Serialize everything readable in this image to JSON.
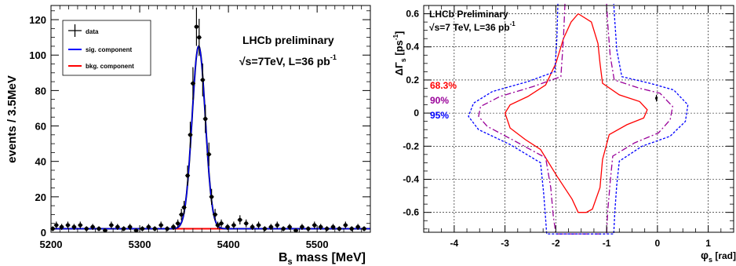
{
  "chart_data": [
    {
      "type": "scatter",
      "xlabel_main": "B",
      "xlabel_sub": "s",
      "xlabel_rest": " mass [MeV]",
      "ylabel": "events / 3.5MeV",
      "xlim": [
        5200,
        5560
      ],
      "ylim": [
        0,
        128
      ],
      "xticks": [
        5200,
        5300,
        5400,
        5500
      ],
      "yticks": [
        0,
        20,
        40,
        60,
        80,
        100,
        120
      ],
      "annotation_line1": "LHCb preliminary",
      "annotation_line2": "√s=7TeV, L=36 pb",
      "annotation_sup": "-1",
      "legend": {
        "placement": "top-left",
        "entries": [
          {
            "label": "data",
            "color": "#000000"
          },
          {
            "label": "sig. component",
            "color": "#0000ff"
          },
          {
            "label": "bkg. component",
            "color": "#ff0000"
          }
        ]
      },
      "signal": {
        "mean": 5366.5,
        "sigma": 7.5,
        "amplitude": 103
      },
      "background_level": 2.0,
      "data_points": [
        {
          "x": 5202,
          "y": 2,
          "err": 1.4
        },
        {
          "x": 5206,
          "y": 4,
          "err": 2
        },
        {
          "x": 5212,
          "y": 3,
          "err": 1.7
        },
        {
          "x": 5219,
          "y": 4,
          "err": 2
        },
        {
          "x": 5226,
          "y": 3,
          "err": 1.7
        },
        {
          "x": 5233,
          "y": 4,
          "err": 2
        },
        {
          "x": 5240,
          "y": 2,
          "err": 1.4
        },
        {
          "x": 5247,
          "y": 3,
          "err": 1.7
        },
        {
          "x": 5254,
          "y": 2,
          "err": 1.4
        },
        {
          "x": 5261,
          "y": 1,
          "err": 1
        },
        {
          "x": 5268,
          "y": 4,
          "err": 2
        },
        {
          "x": 5275,
          "y": 3,
          "err": 1.7
        },
        {
          "x": 5282,
          "y": 2,
          "err": 1.4
        },
        {
          "x": 5289,
          "y": 3,
          "err": 1.7
        },
        {
          "x": 5296,
          "y": 1,
          "err": 1
        },
        {
          "x": 5303,
          "y": 2,
          "err": 1.4
        },
        {
          "x": 5310,
          "y": 3,
          "err": 1.7
        },
        {
          "x": 5317,
          "y": 2,
          "err": 1.4
        },
        {
          "x": 5324,
          "y": 4,
          "err": 2
        },
        {
          "x": 5331,
          "y": 2,
          "err": 1.4
        },
        {
          "x": 5338,
          "y": 3,
          "err": 1.7
        },
        {
          "x": 5343,
          "y": 5,
          "err": 2.2
        },
        {
          "x": 5347,
          "y": 10,
          "err": 3.2
        },
        {
          "x": 5350,
          "y": 14,
          "err": 3.7
        },
        {
          "x": 5354,
          "y": 32,
          "err": 5.7
        },
        {
          "x": 5357,
          "y": 55,
          "err": 7.4
        },
        {
          "x": 5360,
          "y": 84,
          "err": 9.2
        },
        {
          "x": 5364,
          "y": 116,
          "err": 10.8
        },
        {
          "x": 5367,
          "y": 110,
          "err": 10.5
        },
        {
          "x": 5371,
          "y": 86,
          "err": 9.3
        },
        {
          "x": 5374,
          "y": 64,
          "err": 8
        },
        {
          "x": 5378,
          "y": 44,
          "err": 6.6
        },
        {
          "x": 5381,
          "y": 20,
          "err": 4.5
        },
        {
          "x": 5385,
          "y": 10,
          "err": 3.2
        },
        {
          "x": 5388,
          "y": 4,
          "err": 2
        },
        {
          "x": 5392,
          "y": 5,
          "err": 2.2
        },
        {
          "x": 5399,
          "y": 3,
          "err": 1.7
        },
        {
          "x": 5406,
          "y": 4,
          "err": 2
        },
        {
          "x": 5413,
          "y": 7,
          "err": 2.6
        },
        {
          "x": 5420,
          "y": 5,
          "err": 2.2
        },
        {
          "x": 5427,
          "y": 3,
          "err": 1.7
        },
        {
          "x": 5434,
          "y": 4,
          "err": 2
        },
        {
          "x": 5441,
          "y": 2,
          "err": 1.4
        },
        {
          "x": 5448,
          "y": 3,
          "err": 1.7
        },
        {
          "x": 5455,
          "y": 4,
          "err": 2
        },
        {
          "x": 5462,
          "y": 2,
          "err": 1.4
        },
        {
          "x": 5469,
          "y": 3,
          "err": 1.7
        },
        {
          "x": 5476,
          "y": 1,
          "err": 1
        },
        {
          "x": 5483,
          "y": 3,
          "err": 1.7
        },
        {
          "x": 5490,
          "y": 2,
          "err": 1.4
        },
        {
          "x": 5497,
          "y": 4,
          "err": 2
        },
        {
          "x": 5504,
          "y": 3,
          "err": 1.7
        },
        {
          "x": 5511,
          "y": 2,
          "err": 1.4
        },
        {
          "x": 5518,
          "y": 3,
          "err": 1.7
        },
        {
          "x": 5525,
          "y": 2,
          "err": 1.4
        },
        {
          "x": 5532,
          "y": 4,
          "err": 2
        },
        {
          "x": 5539,
          "y": 2,
          "err": 1.4
        },
        {
          "x": 5546,
          "y": 3,
          "err": 1.7
        },
        {
          "x": 5553,
          "y": 2,
          "err": 1.4
        }
      ]
    },
    {
      "type": "contour",
      "xlabel_main": "φ",
      "xlabel_sub": "s",
      "xlabel_rest": " [rad]",
      "ylabel_main": "ΔΓ",
      "ylabel_sub": "s",
      "ylabel_rest": " [ps",
      "ylabel_sup": "-1",
      "ylabel_close": "]",
      "xlim": [
        -4.6,
        1.5
      ],
      "ylim": [
        -0.72,
        0.65
      ],
      "xticks": [
        -4,
        -3,
        -2,
        -1,
        0,
        1
      ],
      "yticks": [
        -0.6,
        -0.4,
        -0.2,
        0,
        0.2,
        0.4,
        0.6
      ],
      "grid": true,
      "annotation_line1": "LHCb Preliminary",
      "annotation_line2": "√s=7 TeV, L=36 pb",
      "annotation_sup": "-1",
      "legend": {
        "placement": "left",
        "entries": [
          {
            "label": "68.3%",
            "color": "#ff0000"
          },
          {
            "label": "90%",
            "color": "#990099"
          },
          {
            "label": "95%",
            "color": "#0000ff"
          }
        ]
      },
      "best_fit": {
        "x": -0.02,
        "y": 0.09,
        "err": 0.02
      },
      "contours": [
        {
          "level": "68.3%",
          "color": "#ff0000",
          "dash": "",
          "points": [
            [
              -1.56,
              0.6
            ],
            [
              -1.3,
              0.55
            ],
            [
              -1.17,
              0.42
            ],
            [
              -1.13,
              0.3
            ],
            [
              -1.08,
              0.18
            ],
            [
              -0.75,
              0.11
            ],
            [
              -0.35,
              0.07
            ],
            [
              -0.2,
              0.02
            ],
            [
              -0.27,
              -0.03
            ],
            [
              -0.6,
              -0.07
            ],
            [
              -0.95,
              -0.13
            ],
            [
              -1.08,
              -0.28
            ],
            [
              -1.13,
              -0.45
            ],
            [
              -1.28,
              -0.58
            ],
            [
              -1.4,
              -0.6
            ],
            [
              -1.56,
              -0.6
            ],
            [
              -1.68,
              -0.52
            ],
            [
              -1.98,
              -0.38
            ],
            [
              -2.3,
              -0.22
            ],
            [
              -2.6,
              -0.16
            ],
            [
              -2.9,
              -0.09
            ],
            [
              -3.0,
              0.0
            ],
            [
              -2.9,
              0.05
            ],
            [
              -2.55,
              0.1
            ],
            [
              -2.2,
              0.17
            ],
            [
              -2.0,
              0.3
            ],
            [
              -1.85,
              0.45
            ],
            [
              -1.7,
              0.55
            ],
            [
              -1.56,
              0.6
            ]
          ]
        },
        {
          "level": "90%",
          "color": "#990099",
          "dash": "8 3 2 3",
          "points": [
            [
              -1.82,
              0.66
            ],
            [
              -1.85,
              0.45
            ],
            [
              -1.9,
              0.22
            ],
            [
              -2.45,
              0.16
            ],
            [
              -3.1,
              0.1
            ],
            [
              -3.48,
              0.04
            ],
            [
              -3.52,
              -0.02
            ],
            [
              -3.35,
              -0.08
            ],
            [
              -2.8,
              -0.17
            ],
            [
              -2.2,
              -0.27
            ],
            [
              -2.1,
              -0.45
            ],
            [
              -2.05,
              -0.62
            ],
            [
              -2.0,
              -0.73
            ],
            [
              -1.0,
              -0.73
            ],
            [
              -0.98,
              -0.6
            ],
            [
              -0.93,
              -0.42
            ],
            [
              -0.88,
              -0.26
            ],
            [
              -0.45,
              -0.18
            ],
            [
              0.02,
              -0.12
            ],
            [
              0.25,
              -0.04
            ],
            [
              0.3,
              0.04
            ],
            [
              0.05,
              0.12
            ],
            [
              -0.35,
              0.15
            ],
            [
              -0.85,
              0.2
            ],
            [
              -0.93,
              0.35
            ],
            [
              -0.98,
              0.55
            ],
            [
              -1.0,
              0.66
            ]
          ]
        },
        {
          "level": "95%",
          "color": "#0000ff",
          "dash": "3 2",
          "points": [
            [
              -1.96,
              0.66
            ],
            [
              -1.98,
              0.45
            ],
            [
              -2.02,
              0.25
            ],
            [
              -2.55,
              0.19
            ],
            [
              -3.25,
              0.13
            ],
            [
              -3.62,
              0.06
            ],
            [
              -3.72,
              -0.02
            ],
            [
              -3.52,
              -0.1
            ],
            [
              -2.9,
              -0.19
            ],
            [
              -2.3,
              -0.3
            ],
            [
              -2.24,
              -0.48
            ],
            [
              -2.2,
              -0.64
            ],
            [
              -2.18,
              -0.73
            ],
            [
              -0.86,
              -0.73
            ],
            [
              -0.84,
              -0.6
            ],
            [
              -0.8,
              -0.43
            ],
            [
              -0.75,
              -0.29
            ],
            [
              -0.3,
              -0.2
            ],
            [
              0.25,
              -0.14
            ],
            [
              0.55,
              -0.05
            ],
            [
              0.6,
              0.05
            ],
            [
              0.32,
              0.14
            ],
            [
              -0.15,
              0.18
            ],
            [
              -0.7,
              0.22
            ],
            [
              -0.8,
              0.38
            ],
            [
              -0.84,
              0.56
            ],
            [
              -0.86,
              0.66
            ]
          ]
        }
      ]
    }
  ]
}
